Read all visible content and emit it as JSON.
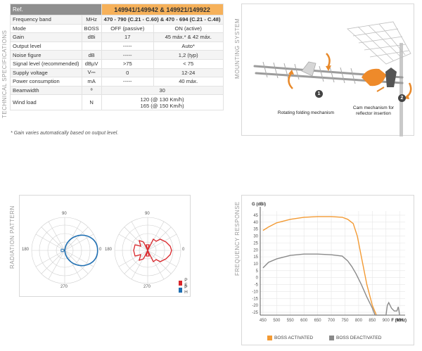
{
  "labels": {
    "technical_specifications": "TECHNICAL SPECIFICATIONS",
    "mounting_system": "MOUNTING SYSTEM",
    "radiation_pattern": "RADIATION PATTERN",
    "frequency_response": "FREQUENCY RESPONSE"
  },
  "spec_table": {
    "header": {
      "ref_label": "Ref.",
      "ref_value": "149941/149942  &  149921/149922"
    },
    "rows": [
      {
        "name": "Frequency band",
        "unit": "MHz",
        "v1": "470 - 790 (C.21 - C.60)  &  470 - 694 (C.21 - C.48)",
        "v2": ""
      },
      {
        "name": "Mode",
        "unit": "BOSS",
        "v1": "OFF (passive)",
        "v2": "ON (active)"
      },
      {
        "name": "Gain",
        "unit": "dBi",
        "v1": "17",
        "v2": "45 máx.* & 42 máx."
      },
      {
        "name": "Output level",
        "unit": "",
        "v1": "-----",
        "v2": "Auto*"
      },
      {
        "name": "Noise figure",
        "unit": "dB",
        "v1": "-----",
        "v2": "1,2 (typ)"
      },
      {
        "name": "Signal level (recommended)",
        "unit": "dBµV",
        "v1": ">75",
        "v2": "< 75"
      },
      {
        "name": "Supply voltage",
        "unit": "V⎓",
        "v1": "0",
        "v2": "12-24"
      },
      {
        "name": "Power consumption",
        "unit": "mA",
        "v1": "-----",
        "v2": "40 máx."
      },
      {
        "name": "Beamwidth",
        "unit": "º",
        "v1": "30",
        "v2": ""
      },
      {
        "name": "Wind load",
        "unit": "N",
        "v1": "120  (@ 130 Km/h)",
        "v1b": "165  (@ 150 Km/h)",
        "v2": ""
      }
    ],
    "note": "* Gain varies automatically based on output level."
  },
  "mounting": {
    "caption1": "Rotating folding mechanism",
    "caption2a": "Cam mechanism for",
    "caption2b": "reflector insertion",
    "badge1": "1",
    "badge2": "2"
  },
  "radiation": {
    "angles": {
      "top": "90",
      "left": "180",
      "right": "0",
      "bottom": "270"
    },
    "legend": [
      {
        "label": "P E",
        "color": "#d9252a"
      },
      {
        "label": "P H",
        "color": "#1f6fb2"
      }
    ]
  },
  "chart_data": {
    "type": "line",
    "ylabel": "G (dBi)",
    "xlabel": "F (MHz)",
    "x_ticks": [
      450,
      500,
      550,
      600,
      650,
      700,
      750,
      800,
      850,
      900,
      950
    ],
    "y_ticks": [
      45,
      40,
      35,
      30,
      25,
      20,
      15,
      10,
      5,
      0,
      -5,
      -10,
      -15,
      -20,
      -25
    ],
    "xlim": [
      440,
      970
    ],
    "ylim": [
      -27,
      48
    ],
    "series": [
      {
        "name": "BOSS ACTIVATED",
        "color": "#f39a33",
        "x": [
          450,
          470,
          500,
          550,
          600,
          650,
          700,
          740,
          760,
          780,
          795,
          810,
          830,
          850,
          865
        ],
        "y": [
          34,
          36.5,
          39.5,
          42,
          43.5,
          44,
          44,
          43.5,
          42,
          39,
          30,
          15,
          -5,
          -20,
          -27
        ]
      },
      {
        "name": "BOSS DEACTIVATED",
        "color": "#8a8a8a",
        "x": [
          450,
          470,
          500,
          550,
          600,
          650,
          700,
          740,
          760,
          775,
          790,
          810,
          830,
          850,
          860,
          880,
          900,
          905,
          910,
          920,
          930,
          940,
          945,
          950
        ],
        "y": [
          7,
          11,
          13.5,
          16,
          17,
          17,
          16.5,
          15.5,
          12,
          8,
          3,
          -5,
          -14,
          -22,
          -27,
          -27,
          -27,
          -20,
          -18,
          -22,
          -24,
          -24,
          -21,
          -27
        ]
      }
    ]
  }
}
